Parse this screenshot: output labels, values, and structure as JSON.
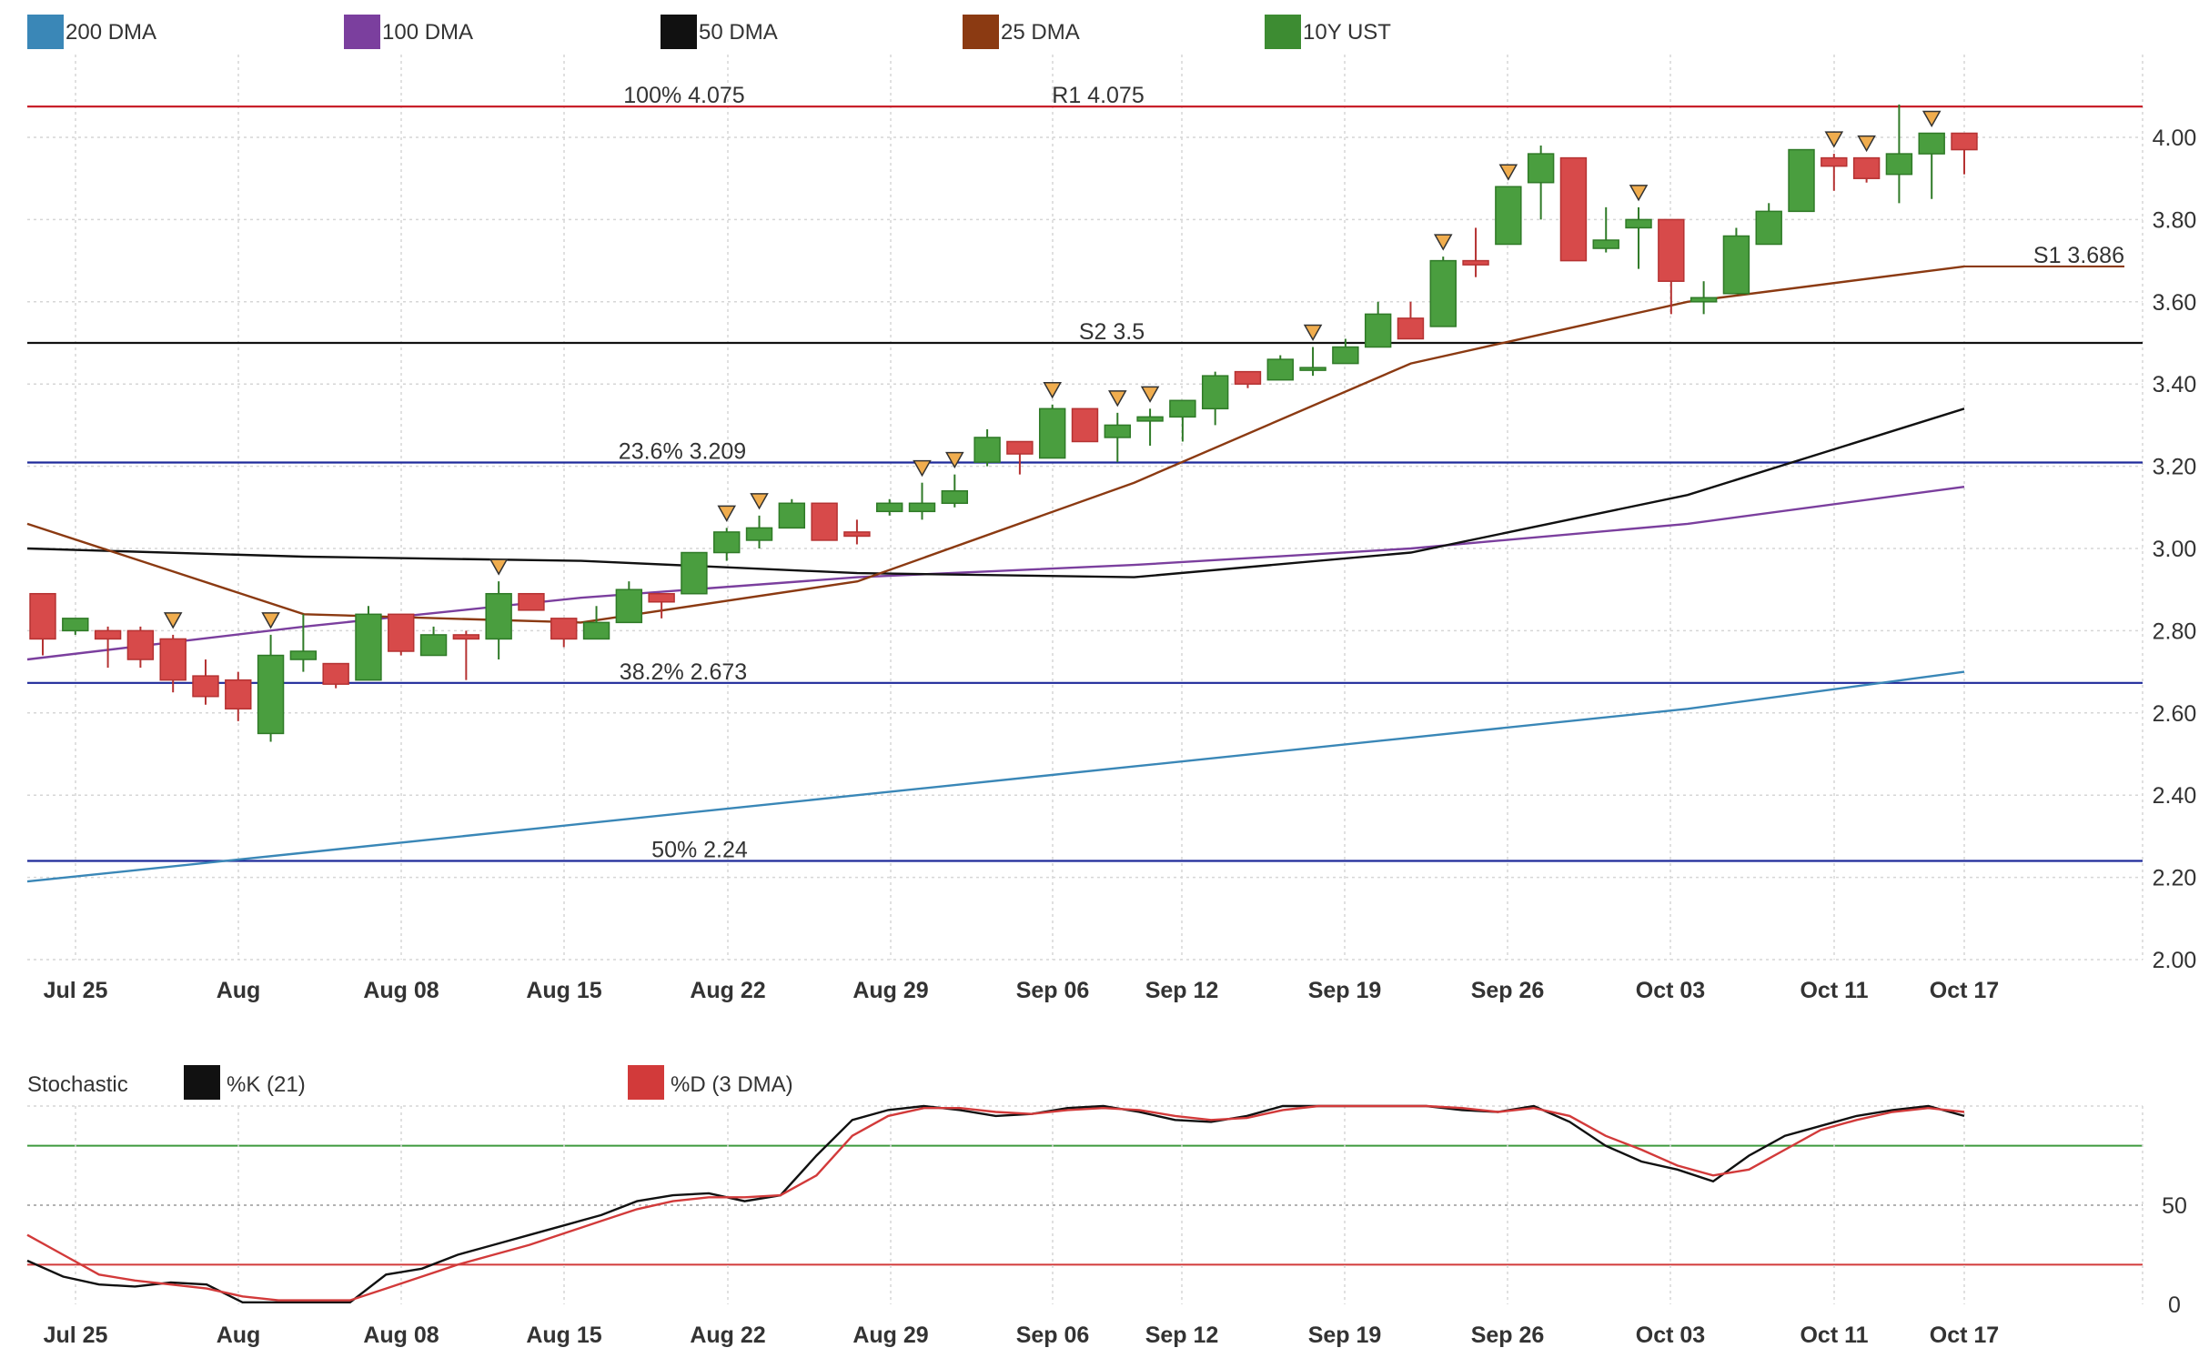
{
  "chart_data": [
    {
      "type": "candlestick",
      "title": "",
      "legend": [
        {
          "label": "200 DMA",
          "color": "#3a87b7"
        },
        {
          "label": "100 DMA",
          "color": "#7b3f9e"
        },
        {
          "label": "50 DMA",
          "color": "#111111"
        },
        {
          "label": "25 DMA",
          "color": "#8b3a12"
        },
        {
          "label": "10Y UST",
          "color": "#3d8c32"
        }
      ],
      "legend_placement": "top",
      "grid": true,
      "x_tick_labels": [
        "Jul 25",
        "Aug",
        "Aug 08",
        "Aug 15",
        "Aug 22",
        "Aug 29",
        "Sep 06",
        "Sep 12",
        "Sep 19",
        "Sep 26",
        "Oct 03",
        "Oct 11",
        "Oct 17"
      ],
      "ylim": [
        2.0,
        4.2
      ],
      "y_ticks": [
        "2.00",
        "2.20",
        "2.40",
        "2.60",
        "2.80",
        "3.00",
        "3.20",
        "3.40",
        "3.60",
        "3.80",
        "4.00"
      ],
      "levels": [
        {
          "label": "100% 4.075",
          "value": 4.075,
          "color": "#c8202a"
        },
        {
          "label": "R1 4.075",
          "value": 4.075,
          "color": "#c8202a"
        },
        {
          "label": "S1 3.686",
          "value": 3.686,
          "color": "#8b3a12"
        },
        {
          "label": "S2 3.5",
          "value": 3.5,
          "color": "#111111"
        },
        {
          "label": "23.6% 3.209",
          "value": 3.209,
          "color": "#1f2a9a"
        },
        {
          "label": "38.2% 2.673",
          "value": 2.673,
          "color": "#1f2a9a"
        },
        {
          "label": "50% 2.24",
          "value": 2.24,
          "color": "#1f2a9a"
        }
      ],
      "candles": [
        {
          "o": 2.89,
          "h": 2.89,
          "l": 2.74,
          "c": 2.78
        },
        {
          "o": 2.8,
          "h": 2.83,
          "l": 2.79,
          "c": 2.83
        },
        {
          "o": 2.8,
          "h": 2.81,
          "l": 2.71,
          "c": 2.78
        },
        {
          "o": 2.8,
          "h": 2.81,
          "l": 2.71,
          "c": 2.73
        },
        {
          "o": 2.78,
          "h": 2.79,
          "l": 2.65,
          "c": 2.68
        },
        {
          "o": 2.69,
          "h": 2.73,
          "l": 2.62,
          "c": 2.64
        },
        {
          "o": 2.68,
          "h": 2.7,
          "l": 2.58,
          "c": 2.61
        },
        {
          "o": 2.55,
          "h": 2.79,
          "l": 2.53,
          "c": 2.74
        },
        {
          "o": 2.73,
          "h": 2.84,
          "l": 2.7,
          "c": 2.75
        },
        {
          "o": 2.72,
          "h": 2.72,
          "l": 2.66,
          "c": 2.67
        },
        {
          "o": 2.68,
          "h": 2.86,
          "l": 2.68,
          "c": 2.84
        },
        {
          "o": 2.84,
          "h": 2.84,
          "l": 2.74,
          "c": 2.75
        },
        {
          "o": 2.74,
          "h": 2.81,
          "l": 2.74,
          "c": 2.79
        },
        {
          "o": 2.79,
          "h": 2.8,
          "l": 2.68,
          "c": 2.78
        },
        {
          "o": 2.78,
          "h": 2.92,
          "l": 2.73,
          "c": 2.89
        },
        {
          "o": 2.89,
          "h": 2.89,
          "l": 2.85,
          "c": 2.85
        },
        {
          "o": 2.83,
          "h": 2.83,
          "l": 2.76,
          "c": 2.78
        },
        {
          "o": 2.78,
          "h": 2.86,
          "l": 2.78,
          "c": 2.82
        },
        {
          "o": 2.82,
          "h": 2.92,
          "l": 2.82,
          "c": 2.9
        },
        {
          "o": 2.89,
          "h": 2.89,
          "l": 2.83,
          "c": 2.87
        },
        {
          "o": 2.89,
          "h": 2.99,
          "l": 2.89,
          "c": 2.99
        },
        {
          "o": 2.99,
          "h": 3.05,
          "l": 2.97,
          "c": 3.04
        },
        {
          "o": 3.02,
          "h": 3.08,
          "l": 3.0,
          "c": 3.05
        },
        {
          "o": 3.05,
          "h": 3.12,
          "l": 3.05,
          "c": 3.11
        },
        {
          "o": 3.11,
          "h": 3.11,
          "l": 3.02,
          "c": 3.02
        },
        {
          "o": 3.04,
          "h": 3.07,
          "l": 3.01,
          "c": 3.03
        },
        {
          "o": 3.09,
          "h": 3.12,
          "l": 3.08,
          "c": 3.11
        },
        {
          "o": 3.09,
          "h": 3.16,
          "l": 3.07,
          "c": 3.11
        },
        {
          "o": 3.11,
          "h": 3.18,
          "l": 3.1,
          "c": 3.14
        },
        {
          "o": 3.21,
          "h": 3.29,
          "l": 3.2,
          "c": 3.27
        },
        {
          "o": 3.26,
          "h": 3.26,
          "l": 3.18,
          "c": 3.23
        },
        {
          "o": 3.22,
          "h": 3.35,
          "l": 3.22,
          "c": 3.34
        },
        {
          "o": 3.34,
          "h": 3.34,
          "l": 3.26,
          "c": 3.26
        },
        {
          "o": 3.27,
          "h": 3.33,
          "l": 3.21,
          "c": 3.3
        },
        {
          "o": 3.31,
          "h": 3.34,
          "l": 3.25,
          "c": 3.32
        },
        {
          "o": 3.32,
          "h": 3.35,
          "l": 3.26,
          "c": 3.36
        },
        {
          "o": 3.34,
          "h": 3.43,
          "l": 3.3,
          "c": 3.42
        },
        {
          "o": 3.43,
          "h": 3.43,
          "l": 3.39,
          "c": 3.4
        },
        {
          "o": 3.41,
          "h": 3.47,
          "l": 3.41,
          "c": 3.46
        },
        {
          "o": 3.44,
          "h": 3.49,
          "l": 3.42,
          "c": 3.44
        },
        {
          "o": 3.45,
          "h": 3.51,
          "l": 3.45,
          "c": 3.49
        },
        {
          "o": 3.49,
          "h": 3.6,
          "l": 3.49,
          "c": 3.57
        },
        {
          "o": 3.56,
          "h": 3.6,
          "l": 3.51,
          "c": 3.51
        },
        {
          "o": 3.54,
          "h": 3.71,
          "l": 3.54,
          "c": 3.7
        },
        {
          "o": 3.7,
          "h": 3.78,
          "l": 3.66,
          "c": 3.69
        },
        {
          "o": 3.74,
          "h": 3.88,
          "l": 3.74,
          "c": 3.88
        },
        {
          "o": 3.89,
          "h": 3.98,
          "l": 3.8,
          "c": 3.96
        },
        {
          "o": 3.95,
          "h": 3.95,
          "l": 3.7,
          "c": 3.7
        },
        {
          "o": 3.73,
          "h": 3.83,
          "l": 3.72,
          "c": 3.75
        },
        {
          "o": 3.78,
          "h": 3.83,
          "l": 3.68,
          "c": 3.8
        },
        {
          "o": 3.8,
          "h": 3.8,
          "l": 3.57,
          "c": 3.65
        },
        {
          "o": 3.6,
          "h": 3.65,
          "l": 3.57,
          "c": 3.61
        },
        {
          "o": 3.62,
          "h": 3.78,
          "l": 3.62,
          "c": 3.76
        },
        {
          "o": 3.74,
          "h": 3.84,
          "l": 3.74,
          "c": 3.82
        },
        {
          "o": 3.82,
          "h": 3.97,
          "l": 3.82,
          "c": 3.97
        },
        {
          "o": 3.95,
          "h": 3.96,
          "l": 3.87,
          "c": 3.93
        },
        {
          "o": 3.95,
          "h": 3.95,
          "l": 3.89,
          "c": 3.9
        },
        {
          "o": 3.91,
          "h": 4.08,
          "l": 3.84,
          "c": 3.96
        },
        {
          "o": 3.96,
          "h": 4.01,
          "l": 3.85,
          "c": 4.01
        },
        {
          "o": 4.01,
          "h": 4.01,
          "l": 3.91,
          "c": 3.97
        }
      ],
      "signal_markers": [
        4,
        7,
        14,
        21,
        22,
        27,
        28,
        31,
        33,
        34,
        39,
        43,
        45,
        49,
        55,
        56,
        58
      ],
      "moving_averages": [
        {
          "name": "200 DMA",
          "color": "#3a87b7",
          "values": [
            2.19,
            2.26,
            2.33,
            2.4,
            2.47,
            2.54,
            2.61,
            2.7
          ]
        },
        {
          "name": "100 DMA",
          "color": "#7b3f9e",
          "values": [
            2.73,
            2.81,
            2.88,
            2.93,
            2.96,
            3.0,
            3.06,
            3.15
          ]
        },
        {
          "name": "50 DMA",
          "color": "#111111",
          "values": [
            3.0,
            2.98,
            2.97,
            2.94,
            2.93,
            2.99,
            3.13,
            3.34
          ]
        },
        {
          "name": "25 DMA",
          "color": "#8b3a12",
          "values": [
            3.06,
            2.84,
            2.82,
            2.92,
            3.16,
            3.45,
            3.6,
            3.686
          ]
        }
      ]
    },
    {
      "type": "line",
      "title": "Stochastic",
      "legend": [
        {
          "label": "%K (21)",
          "color": "#111111"
        },
        {
          "label": "%D (3 DMA)",
          "color": "#d23a3a"
        }
      ],
      "legend_placement": "top",
      "ylim": [
        0,
        100
      ],
      "y_ticks": [
        "0",
        "50"
      ],
      "reference_lines": [
        80,
        50,
        20
      ],
      "x_tick_labels": [
        "Jul 25",
        "Aug",
        "Aug 08",
        "Aug 15",
        "Aug 22",
        "Aug 29",
        "Sep 06",
        "Sep 12",
        "Sep 19",
        "Sep 26",
        "Oct 03",
        "Oct 11",
        "Oct 17"
      ],
      "series": [
        {
          "name": "%K (21)",
          "color": "#111111",
          "values": [
            22,
            14,
            10,
            9,
            11,
            10,
            1,
            1,
            1,
            1,
            15,
            18,
            25,
            30,
            35,
            40,
            45,
            52,
            55,
            56,
            52,
            55,
            75,
            93,
            98,
            100,
            98,
            95,
            96,
            99,
            100,
            97,
            93,
            92,
            95,
            100,
            100,
            100,
            100,
            100,
            98,
            97,
            100,
            92,
            80,
            72,
            68,
            62,
            75,
            85,
            90,
            95,
            98,
            100,
            95
          ]
        },
        {
          "name": "%D (3 DMA)",
          "color": "#d23a3a",
          "values": [
            35,
            25,
            15,
            12,
            10,
            8,
            4,
            2,
            2,
            2,
            8,
            14,
            20,
            25,
            30,
            36,
            42,
            48,
            52,
            54,
            54,
            55,
            65,
            85,
            95,
            99,
            99,
            97,
            96,
            98,
            99,
            98,
            95,
            93,
            94,
            98,
            100,
            100,
            100,
            100,
            99,
            97,
            99,
            95,
            85,
            78,
            70,
            65,
            68,
            78,
            88,
            93,
            97,
            99,
            97
          ]
        }
      ]
    }
  ]
}
